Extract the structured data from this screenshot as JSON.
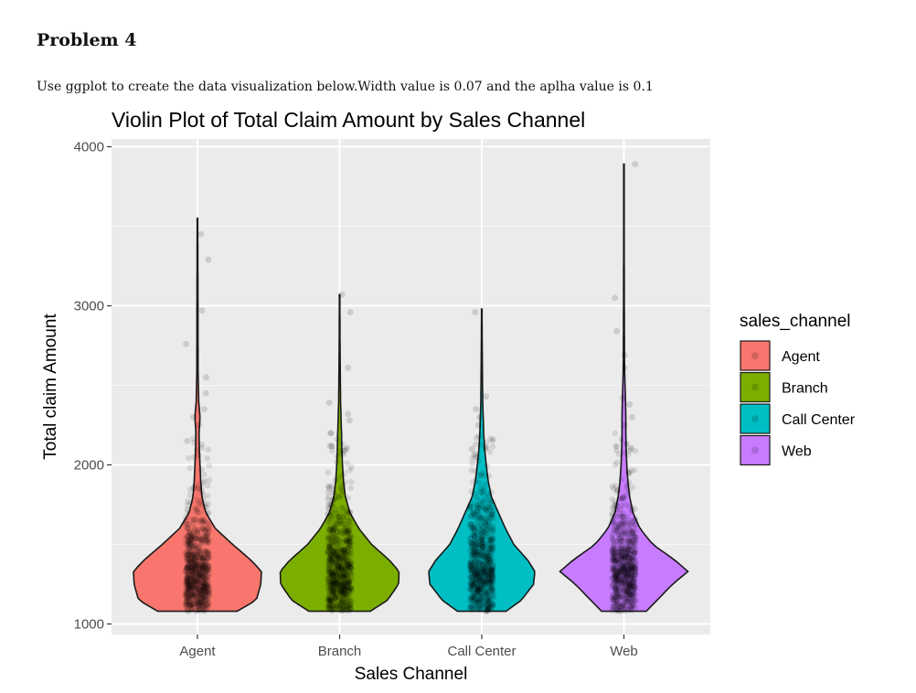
{
  "document": {
    "heading": "Problem 4",
    "instruction": "Use ggplot to create the data visualization below.Width value is 0.07 and the aplha value is 0.1"
  },
  "chart_data": {
    "type": "violin",
    "title": "Violin Plot of Total Claim Amount by Sales Channel",
    "xlabel": "Sales Channel",
    "ylabel": "Total claim Amount",
    "ylim": [
      1000,
      4000
    ],
    "yticks": [
      1000,
      2000,
      3000,
      4000
    ],
    "ytick_labels": [
      "1000",
      "2000",
      "3000",
      "4000"
    ],
    "grid": true,
    "legend": {
      "title": "sales_channel",
      "position": "right"
    },
    "categories": [
      "Agent",
      "Branch",
      "Call Center",
      "Web"
    ],
    "series": [
      {
        "name": "Agent",
        "color": "#F8766D",
        "min": 1080,
        "max": 3550,
        "mode": 1330,
        "profile": [
          [
            1080,
            0.62
          ],
          [
            1150,
            0.92
          ],
          [
            1250,
            0.99
          ],
          [
            1330,
            1.0
          ],
          [
            1400,
            0.84
          ],
          [
            1500,
            0.55
          ],
          [
            1600,
            0.28
          ],
          [
            1700,
            0.13
          ],
          [
            1800,
            0.07
          ],
          [
            1900,
            0.05
          ],
          [
            2000,
            0.04
          ],
          [
            2100,
            0.03
          ],
          [
            2200,
            0.025
          ],
          [
            2300,
            0.04
          ],
          [
            2400,
            0.02
          ],
          [
            2600,
            0.01
          ],
          [
            3000,
            0.008
          ],
          [
            3550,
            0.004
          ]
        ],
        "outliers": [
          3450,
          3290,
          2970,
          2760,
          2550,
          2450,
          2350,
          2300,
          2250,
          2150
        ]
      },
      {
        "name": "Branch",
        "color": "#7CAE00",
        "min": 1080,
        "max": 3070,
        "mode": 1330,
        "profile": [
          [
            1080,
            0.48
          ],
          [
            1150,
            0.75
          ],
          [
            1250,
            0.92
          ],
          [
            1330,
            0.93
          ],
          [
            1400,
            0.78
          ],
          [
            1500,
            0.5
          ],
          [
            1600,
            0.3
          ],
          [
            1700,
            0.16
          ],
          [
            1800,
            0.09
          ],
          [
            1900,
            0.06
          ],
          [
            2000,
            0.045
          ],
          [
            2100,
            0.035
          ],
          [
            2200,
            0.03
          ],
          [
            2400,
            0.015
          ],
          [
            2600,
            0.01
          ],
          [
            2800,
            0.006
          ],
          [
            3070,
            0.004
          ]
        ],
        "outliers": [
          3070,
          2960,
          2610,
          2390,
          2320,
          2280,
          2200,
          2120
        ]
      },
      {
        "name": "Call Center",
        "color": "#00BFC4",
        "min": 1080,
        "max": 2980,
        "mode": 1330,
        "profile": [
          [
            1080,
            0.38
          ],
          [
            1150,
            0.62
          ],
          [
            1250,
            0.81
          ],
          [
            1330,
            0.83
          ],
          [
            1400,
            0.72
          ],
          [
            1500,
            0.5
          ],
          [
            1600,
            0.37
          ],
          [
            1700,
            0.26
          ],
          [
            1800,
            0.15
          ],
          [
            1900,
            0.1
          ],
          [
            2000,
            0.07
          ],
          [
            2100,
            0.045
          ],
          [
            2200,
            0.03
          ],
          [
            2400,
            0.015
          ],
          [
            2600,
            0.01
          ],
          [
            2800,
            0.006
          ],
          [
            2980,
            0.004
          ]
        ],
        "outliers": [
          2960,
          2430,
          2350,
          2300,
          2250,
          2180,
          2100,
          2050
        ]
      },
      {
        "name": "Web",
        "color": "#C77CFF",
        "min": 1080,
        "max": 3890,
        "mode": 1330,
        "profile": [
          [
            1080,
            0.35
          ],
          [
            1150,
            0.52
          ],
          [
            1250,
            0.76
          ],
          [
            1330,
            1.0
          ],
          [
            1400,
            0.8
          ],
          [
            1500,
            0.45
          ],
          [
            1600,
            0.25
          ],
          [
            1700,
            0.14
          ],
          [
            1800,
            0.09
          ],
          [
            1900,
            0.06
          ],
          [
            2000,
            0.045
          ],
          [
            2100,
            0.035
          ],
          [
            2200,
            0.03
          ],
          [
            2300,
            0.03
          ],
          [
            2400,
            0.025
          ],
          [
            2600,
            0.01
          ],
          [
            3000,
            0.006
          ],
          [
            3500,
            0.004
          ],
          [
            3890,
            0.004
          ]
        ],
        "outliers": [
          3890,
          3050,
          2840,
          2690,
          2610,
          2420,
          2380,
          2300,
          2250
        ]
      }
    ]
  }
}
